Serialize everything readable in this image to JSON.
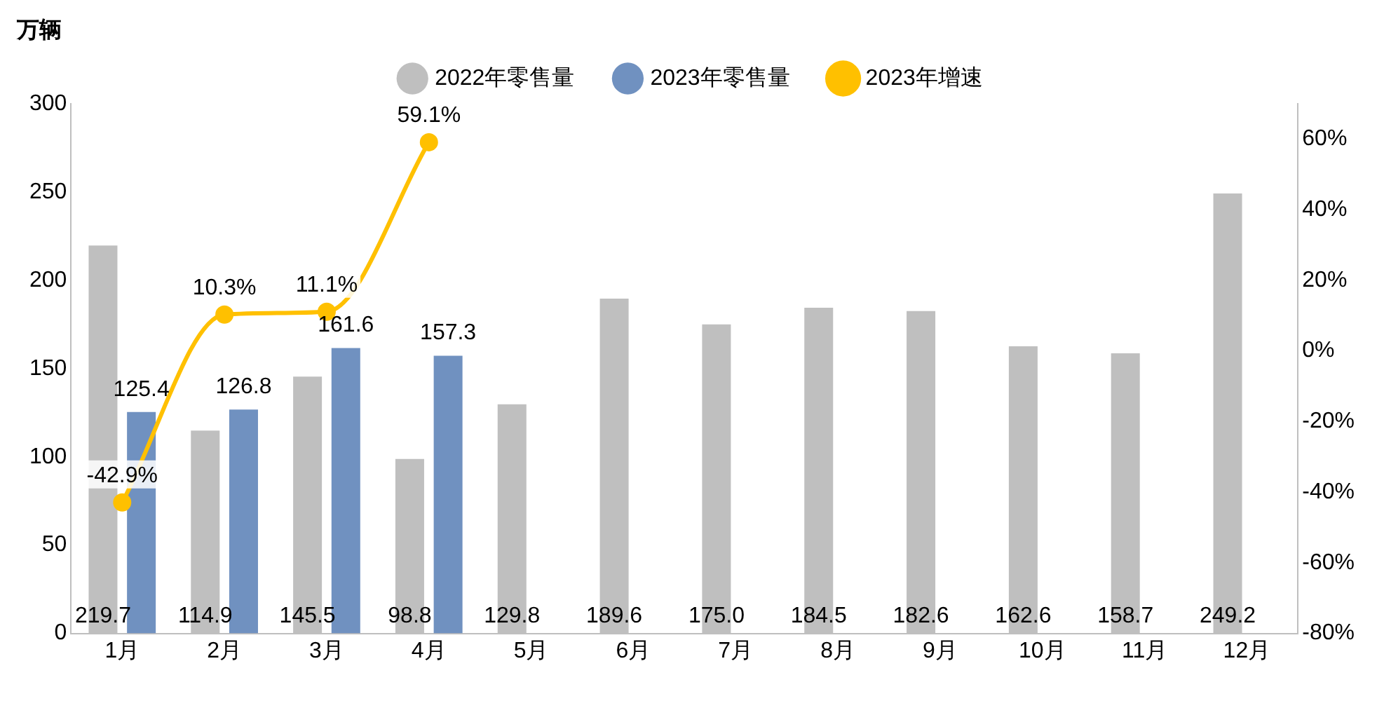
{
  "chart_data": {
    "type": "bar",
    "ylabel": "万辆",
    "categories": [
      "1月",
      "2月",
      "3月",
      "4月",
      "5月",
      "6月",
      "7月",
      "8月",
      "9月",
      "10月",
      "11月",
      "12月"
    ],
    "series": [
      {
        "name": "2022年零售量",
        "color": "#bfbfbf",
        "values": [
          219.7,
          114.9,
          145.5,
          98.8,
          129.8,
          189.6,
          175.0,
          184.5,
          182.6,
          162.6,
          158.7,
          249.2
        ],
        "value_labels": [
          "219.7",
          "114.9",
          "145.5",
          "98.8",
          "129.8",
          "189.6",
          "175.0",
          "184.5",
          "182.6",
          "162.6",
          "158.7",
          "249.2"
        ]
      },
      {
        "name": "2023年零售量",
        "color": "#7091c0",
        "values": [
          125.4,
          126.8,
          161.6,
          157.3,
          null,
          null,
          null,
          null,
          null,
          null,
          null,
          null
        ],
        "value_labels": [
          "125.4",
          "126.8",
          "161.6",
          "157.3",
          null,
          null,
          null,
          null,
          null,
          null,
          null,
          null
        ]
      },
      {
        "name": "2023年增速",
        "type": "line",
        "axis": "y2",
        "color": "#ffc000",
        "values": [
          -42.9,
          10.3,
          11.1,
          59.1,
          null,
          null,
          null,
          null,
          null,
          null,
          null,
          null
        ],
        "value_labels": [
          "-42.9%",
          "10.3%",
          "11.1%",
          "59.1%",
          null,
          null,
          null,
          null,
          null,
          null,
          null,
          null
        ]
      }
    ],
    "ylim": [
      0,
      300
    ],
    "yticks": [
      0,
      50,
      100,
      150,
      200,
      250,
      300
    ],
    "y2lim": [
      -80,
      70
    ],
    "y2ticks": [
      {
        "value": -80,
        "label": "-80%"
      },
      {
        "value": -60,
        "label": "-60%"
      },
      {
        "value": -40,
        "label": "-40%"
      },
      {
        "value": -20,
        "label": "-20%"
      },
      {
        "value": 0,
        "label": "0%"
      },
      {
        "value": 20,
        "label": "20%"
      },
      {
        "value": 40,
        "label": "40%"
      },
      {
        "value": 60,
        "label": "60%"
      }
    ],
    "grid": false,
    "legend": "top",
    "marker": "circle"
  }
}
